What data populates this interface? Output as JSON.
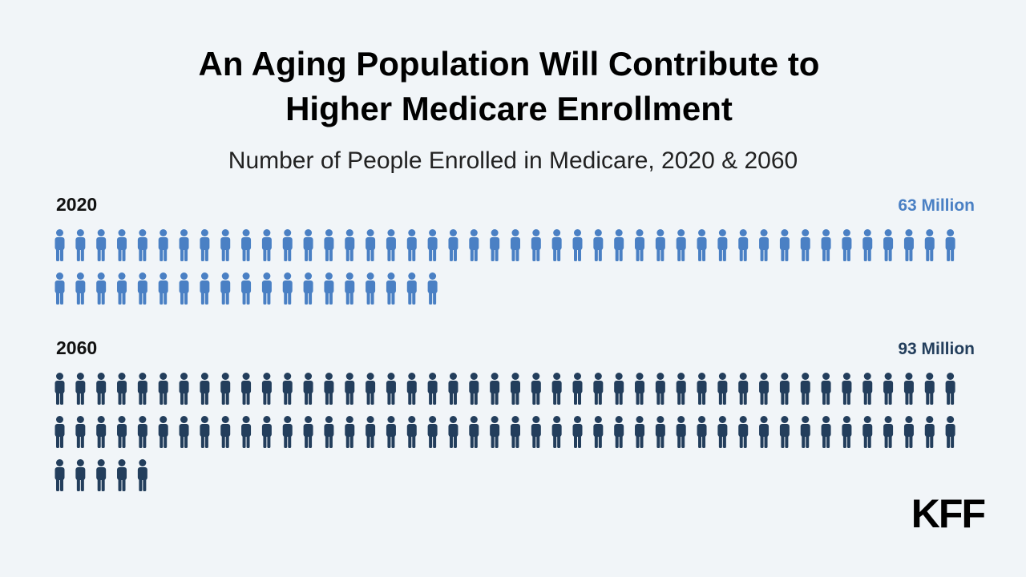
{
  "chart_data": {
    "type": "pictograph",
    "title_lines": [
      "An Aging Population Will Contribute to",
      "Higher Medicare Enrollment"
    ],
    "subtitle": "Number of People Enrolled in Medicare, 2020 & 2060",
    "unit": "Million",
    "series": [
      {
        "label": "2020",
        "value": 63,
        "value_label": "63 Million",
        "color": "#4a80c4"
      },
      {
        "label": "2060",
        "value": 93,
        "value_label": "93 Million",
        "color": "#233e5c"
      }
    ]
  },
  "logo": "KFF",
  "icon": "person-icon"
}
